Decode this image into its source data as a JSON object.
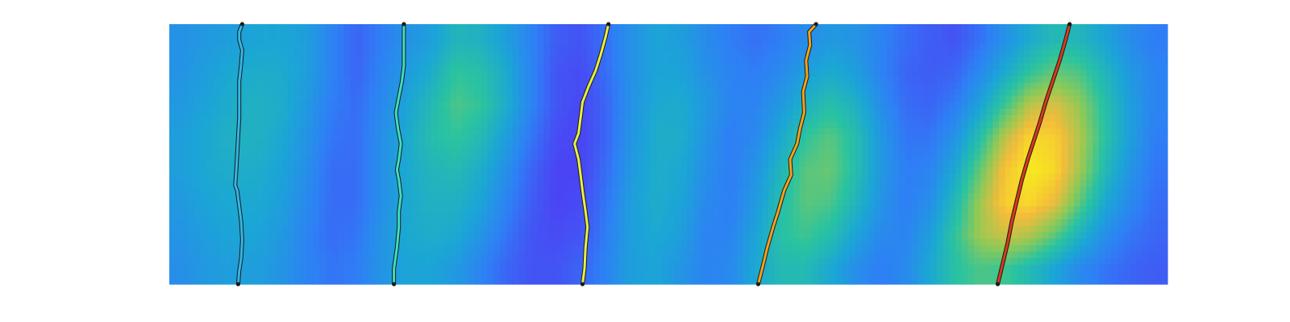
{
  "chart_data": {
    "type": "heatmap",
    "title": "",
    "xlabel": "",
    "ylabel": "",
    "axes_visible": false,
    "grid": false,
    "colormap": [
      "#3e26a8",
      "#4a45f4",
      "#2e80f5",
      "#1ba6d5",
      "#2ac3a0",
      "#8ec957",
      "#f4bc3a",
      "#f9fb15"
    ],
    "line_colors": [
      "#33b7e6",
      "#3cdfc2",
      "#e9f043",
      "#f3a21c",
      "#d83a1c"
    ],
    "x_range": [
      0,
      100
    ],
    "y_range": [
      0,
      100
    ],
    "intensity_grid": {
      "rows": 8,
      "cols": 40,
      "values": [
        [
          0.35,
          0.38,
          0.4,
          0.42,
          0.43,
          0.4,
          0.3,
          0.22,
          0.28,
          0.35,
          0.4,
          0.5,
          0.48,
          0.4,
          0.3,
          0.2,
          0.18,
          0.25,
          0.35,
          0.42,
          0.4,
          0.33,
          0.28,
          0.25,
          0.28,
          0.33,
          0.38,
          0.36,
          0.3,
          0.24,
          0.2,
          0.18,
          0.25,
          0.35,
          0.45,
          0.52,
          0.5,
          0.42,
          0.33,
          0.28
        ],
        [
          0.36,
          0.4,
          0.44,
          0.46,
          0.45,
          0.4,
          0.3,
          0.22,
          0.3,
          0.38,
          0.46,
          0.58,
          0.55,
          0.45,
          0.3,
          0.18,
          0.16,
          0.24,
          0.35,
          0.42,
          0.42,
          0.35,
          0.3,
          0.28,
          0.32,
          0.4,
          0.45,
          0.4,
          0.3,
          0.22,
          0.2,
          0.22,
          0.32,
          0.45,
          0.58,
          0.66,
          0.62,
          0.5,
          0.38,
          0.3
        ],
        [
          0.38,
          0.42,
          0.46,
          0.48,
          0.46,
          0.38,
          0.28,
          0.24,
          0.32,
          0.42,
          0.52,
          0.62,
          0.58,
          0.46,
          0.3,
          0.18,
          0.15,
          0.22,
          0.35,
          0.44,
          0.45,
          0.38,
          0.3,
          0.3,
          0.38,
          0.48,
          0.55,
          0.48,
          0.34,
          0.24,
          0.22,
          0.28,
          0.42,
          0.6,
          0.78,
          0.82,
          0.72,
          0.55,
          0.4,
          0.3
        ],
        [
          0.4,
          0.44,
          0.48,
          0.48,
          0.44,
          0.36,
          0.26,
          0.24,
          0.34,
          0.44,
          0.54,
          0.58,
          0.52,
          0.4,
          0.26,
          0.16,
          0.14,
          0.22,
          0.36,
          0.46,
          0.46,
          0.36,
          0.28,
          0.32,
          0.44,
          0.58,
          0.64,
          0.54,
          0.38,
          0.26,
          0.26,
          0.36,
          0.55,
          0.78,
          0.92,
          0.9,
          0.76,
          0.56,
          0.4,
          0.28
        ],
        [
          0.4,
          0.44,
          0.46,
          0.46,
          0.42,
          0.34,
          0.24,
          0.24,
          0.34,
          0.44,
          0.5,
          0.52,
          0.46,
          0.34,
          0.22,
          0.14,
          0.14,
          0.24,
          0.38,
          0.46,
          0.44,
          0.34,
          0.28,
          0.36,
          0.5,
          0.64,
          0.66,
          0.54,
          0.38,
          0.28,
          0.3,
          0.44,
          0.66,
          0.88,
          0.96,
          0.92,
          0.74,
          0.52,
          0.36,
          0.26
        ],
        [
          0.38,
          0.42,
          0.44,
          0.44,
          0.4,
          0.32,
          0.24,
          0.24,
          0.34,
          0.44,
          0.48,
          0.48,
          0.42,
          0.3,
          0.2,
          0.14,
          0.16,
          0.26,
          0.4,
          0.46,
          0.42,
          0.32,
          0.28,
          0.38,
          0.54,
          0.64,
          0.62,
          0.5,
          0.36,
          0.28,
          0.34,
          0.52,
          0.74,
          0.9,
          0.92,
          0.84,
          0.64,
          0.44,
          0.32,
          0.24
        ],
        [
          0.36,
          0.4,
          0.42,
          0.42,
          0.38,
          0.3,
          0.24,
          0.26,
          0.36,
          0.44,
          0.46,
          0.44,
          0.36,
          0.26,
          0.18,
          0.16,
          0.18,
          0.28,
          0.4,
          0.44,
          0.4,
          0.3,
          0.3,
          0.42,
          0.56,
          0.6,
          0.54,
          0.42,
          0.32,
          0.3,
          0.4,
          0.58,
          0.74,
          0.8,
          0.76,
          0.64,
          0.48,
          0.34,
          0.26,
          0.22
        ],
        [
          0.34,
          0.38,
          0.4,
          0.4,
          0.36,
          0.3,
          0.26,
          0.28,
          0.36,
          0.42,
          0.42,
          0.38,
          0.3,
          0.22,
          0.18,
          0.18,
          0.22,
          0.3,
          0.4,
          0.42,
          0.36,
          0.3,
          0.32,
          0.44,
          0.52,
          0.52,
          0.44,
          0.34,
          0.28,
          0.32,
          0.44,
          0.56,
          0.62,
          0.6,
          0.52,
          0.42,
          0.32,
          0.26,
          0.22,
          0.2
        ]
      ]
    },
    "series": [
      {
        "x": [
          7.3,
          7.0,
          7.0,
          7.3,
          7.2,
          7.0,
          7.0,
          7.0,
          6.9,
          6.8,
          6.7,
          6.6,
          6.8,
          7.0,
          7.2,
          7.3,
          7.2,
          7.0,
          6.9
        ],
        "y": [
          100,
          97,
          94,
          90,
          85,
          78,
          71,
          64,
          57,
          50,
          43,
          38,
          36,
          30,
          24,
          17,
          10,
          5,
          0
        ]
      },
      {
        "x": [
          23.5,
          23.5,
          23.5,
          23.5,
          23.3,
          23.0,
          22.7,
          22.9,
          23.2,
          23.0,
          22.8,
          23.0,
          23.2,
          23.0,
          23.0,
          22.8,
          22.5,
          22.5
        ],
        "y": [
          100,
          96,
          90,
          84,
          78,
          72,
          66,
          60,
          54,
          48,
          44,
          40,
          34,
          28,
          22,
          14,
          6,
          0
        ]
      },
      {
        "x": [
          44.0,
          43.7,
          43.2,
          42.7,
          42.0,
          41.4,
          41.2,
          41.0,
          40.6,
          41.0,
          41.2,
          41.4,
          41.7,
          41.9,
          41.7,
          41.6,
          41.4
        ],
        "y": [
          100,
          95,
          88,
          82,
          76,
          70,
          64,
          58,
          54,
          48,
          42,
          36,
          28,
          22,
          14,
          6,
          0
        ]
      },
      {
        "x": [
          64.8,
          64.1,
          64.2,
          63.8,
          63.9,
          63.5,
          63.6,
          63.2,
          62.9,
          62.2,
          62.3,
          61.6,
          61.0,
          60.5,
          59.9,
          59.4,
          59.0
        ],
        "y": [
          100,
          97,
          92,
          86,
          80,
          74,
          66,
          60,
          54,
          48,
          42,
          36,
          28,
          22,
          14,
          6,
          0
        ]
      },
      {
        "x": [
          90.2,
          89.8,
          89.2,
          88.5,
          87.8,
          87.2,
          86.6,
          86.0,
          85.4,
          84.9,
          84.4,
          84.0,
          83.5,
          83.0
        ],
        "y": [
          100,
          94,
          86,
          78,
          70,
          62,
          55,
          48,
          40,
          32,
          24,
          16,
          8,
          0
        ]
      }
    ]
  }
}
